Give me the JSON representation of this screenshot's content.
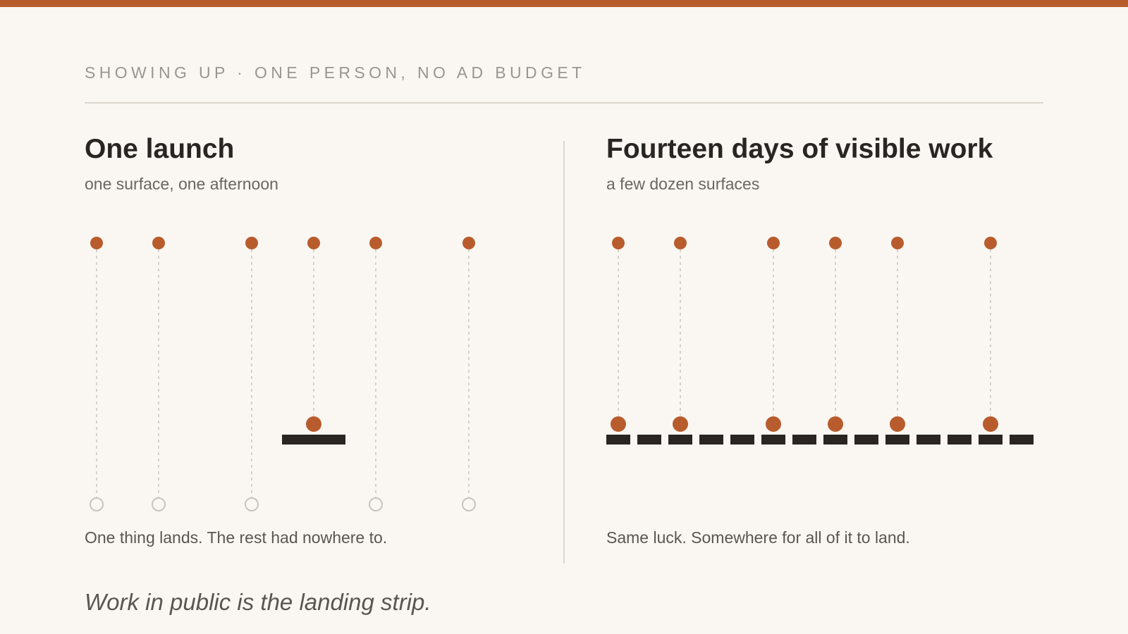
{
  "eyebrow": "SHOWING UP · ONE PERSON, NO AD BUDGET",
  "left_panel": {
    "title": "One launch",
    "subtitle": "one surface, one afternoon",
    "caption": "One thing lands. The rest had nowhere to."
  },
  "right_panel": {
    "title": "Fourteen days of visible work",
    "subtitle": "a few dozen surfaces",
    "caption": "Same luck. Somewhere for all of it to land."
  },
  "takeaway": "Work in public is the landing strip.",
  "colors": {
    "accent": "#b85c2e",
    "ink": "#2a2522",
    "muted": "#c9c3bc",
    "background": "#faf7f3"
  },
  "chart_data": [
    {
      "type": "diagram",
      "name": "One launch",
      "drops": 6,
      "surfaces": 1,
      "landed_drop_index": [
        3
      ],
      "surface_under_drop": [
        3
      ],
      "missed_drop_index": [
        0,
        1,
        2,
        4,
        5
      ]
    },
    {
      "type": "diagram",
      "name": "Fourteen days of visible work",
      "drops": 6,
      "surfaces": 14,
      "landed_drop_index": [
        0,
        1,
        2,
        3,
        4,
        5
      ],
      "drop_surface_index": [
        0,
        2,
        5,
        7,
        9,
        12
      ],
      "missed_drop_index": []
    }
  ]
}
